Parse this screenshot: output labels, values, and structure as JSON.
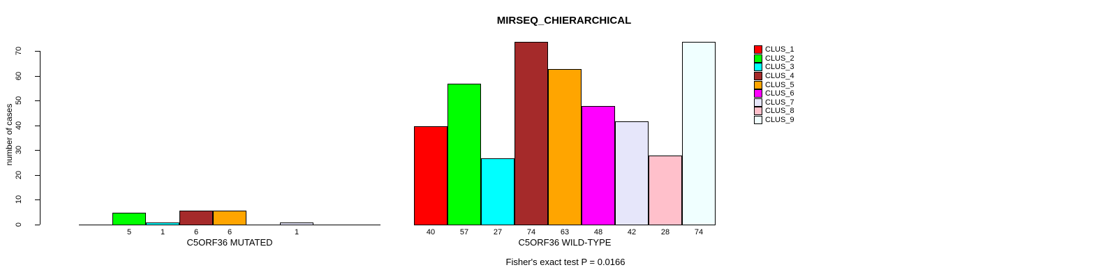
{
  "chart_data": {
    "type": "bar",
    "title": "MIRSEQ_CHIERARCHICAL",
    "ylabel": "number of cases",
    "annotation": "Fisher's exact test P = 0.0166",
    "ylim": [
      0,
      74
    ],
    "yticks": [
      0,
      10,
      20,
      30,
      40,
      50,
      60,
      70
    ],
    "grid": false,
    "legend_position": "right",
    "clusters": [
      "CLUS_1",
      "CLUS_2",
      "CLUS_3",
      "CLUS_4",
      "CLUS_5",
      "CLUS_6",
      "CLUS_7",
      "CLUS_8",
      "CLUS_9"
    ],
    "colors": [
      "#FF0000",
      "#00FF00",
      "#00FFFF",
      "#A52A2A",
      "#FFA500",
      "#FF00FF",
      "#E6E6FA",
      "#FFC0CB",
      "#F0FFFF"
    ],
    "groups": [
      {
        "label": "C5ORF36 MUTATED",
        "values": [
          0,
          5,
          1,
          6,
          6,
          0,
          1,
          0,
          0
        ]
      },
      {
        "label": "C5ORF36 WILD-TYPE",
        "values": [
          40,
          57,
          27,
          74,
          63,
          48,
          42,
          28,
          74
        ]
      }
    ]
  }
}
